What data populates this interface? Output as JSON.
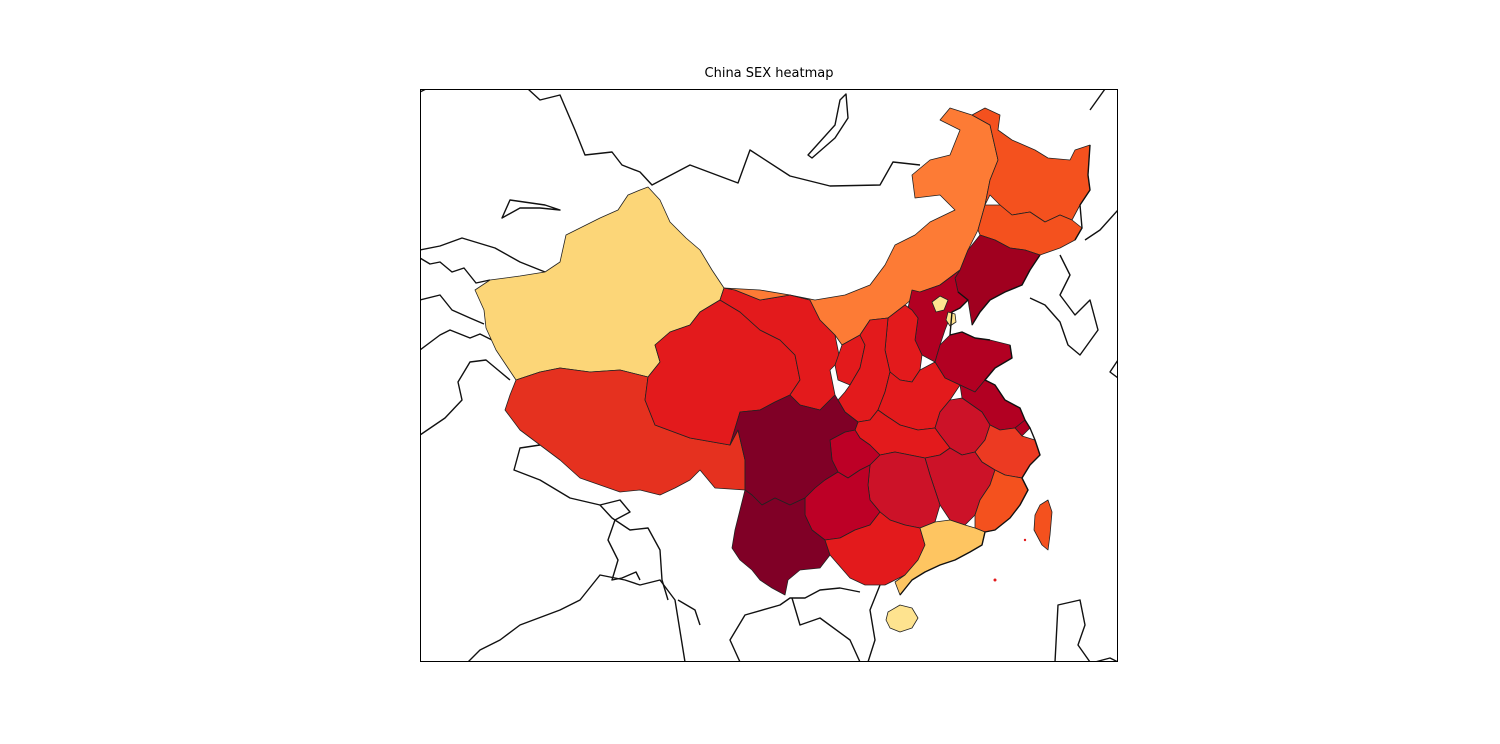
{
  "chart_data": {
    "type": "heatmap",
    "title": "China SEX heatmap",
    "colormap": "YlOrRd",
    "regions": [
      {
        "name": "Xinjiang",
        "level": 0.22,
        "color": "#fcd678"
      },
      {
        "name": "Tibet",
        "level": 0.62,
        "color": "#e5311f"
      },
      {
        "name": "Qinghai",
        "level": 0.66,
        "color": "#e31a1c"
      },
      {
        "name": "Gansu",
        "level": 0.66,
        "color": "#e31a1c"
      },
      {
        "name": "Inner Mongolia",
        "level": 0.45,
        "color": "#fd7b35"
      },
      {
        "name": "Heilongjiang",
        "level": 0.55,
        "color": "#f4511e"
      },
      {
        "name": "Jilin",
        "level": 0.55,
        "color": "#f4511e"
      },
      {
        "name": "Liaoning",
        "level": 0.95,
        "color": "#a0001f"
      },
      {
        "name": "Beijing",
        "level": 0.2,
        "color": "#fee38f"
      },
      {
        "name": "Tianjin",
        "level": 0.2,
        "color": "#fee38f"
      },
      {
        "name": "Hebei",
        "level": 0.9,
        "color": "#b20022"
      },
      {
        "name": "Shandong",
        "level": 0.9,
        "color": "#b20022"
      },
      {
        "name": "Shanxi",
        "level": 0.66,
        "color": "#e31a1c"
      },
      {
        "name": "Ningxia",
        "level": 0.66,
        "color": "#e31a1c"
      },
      {
        "name": "Shaanxi",
        "level": 0.66,
        "color": "#e31a1c"
      },
      {
        "name": "Henan",
        "level": 0.66,
        "color": "#e31a1c"
      },
      {
        "name": "Jiangsu",
        "level": 0.9,
        "color": "#b20022"
      },
      {
        "name": "Anhui",
        "level": 0.8,
        "color": "#cc1228"
      },
      {
        "name": "Shanghai",
        "level": 0.9,
        "color": "#b20022"
      },
      {
        "name": "Hubei",
        "level": 0.66,
        "color": "#e31a1c"
      },
      {
        "name": "Chongqing",
        "level": 0.85,
        "color": "#bd0026"
      },
      {
        "name": "Sichuan",
        "level": 1.0,
        "color": "#800026"
      },
      {
        "name": "Zhejiang",
        "level": 0.62,
        "color": "#ec3a22"
      },
      {
        "name": "Jiangxi",
        "level": 0.8,
        "color": "#cc1228"
      },
      {
        "name": "Hunan",
        "level": 0.8,
        "color": "#cc1228"
      },
      {
        "name": "Guizhou",
        "level": 0.85,
        "color": "#bd0026"
      },
      {
        "name": "Yunnan",
        "level": 1.0,
        "color": "#800026"
      },
      {
        "name": "Fujian",
        "level": 0.55,
        "color": "#f4511e"
      },
      {
        "name": "Guangxi",
        "level": 0.66,
        "color": "#e31a1c"
      },
      {
        "name": "Guangdong",
        "level": 0.25,
        "color": "#fec561"
      },
      {
        "name": "Hainan",
        "level": 0.2,
        "color": "#fee38f"
      },
      {
        "name": "Taiwan",
        "level": 0.55,
        "color": "#f4511e"
      }
    ]
  }
}
